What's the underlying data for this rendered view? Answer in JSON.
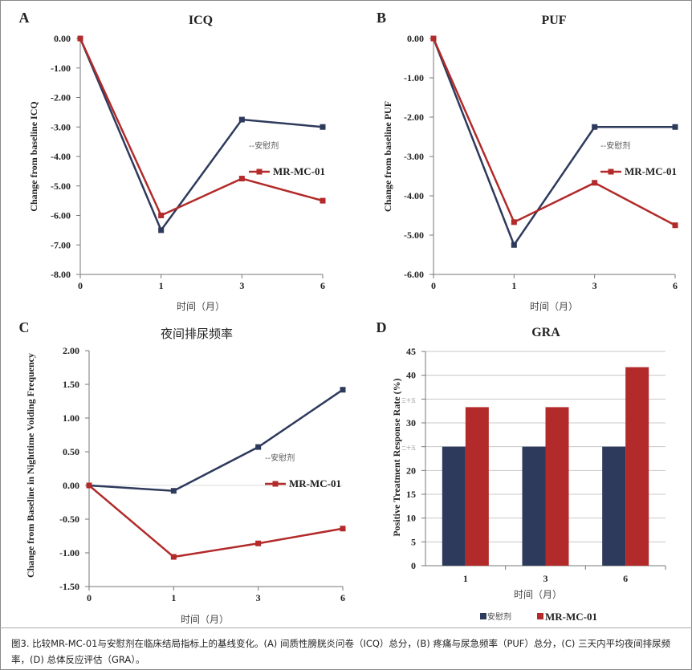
{
  "chart_data": [
    {
      "panel_letter": "A",
      "type": "line",
      "title": "ICQ",
      "xlabel": "时间（月）",
      "ylabel": "Change from baseline ICQ",
      "categories": [
        "0",
        "1",
        "3",
        "6"
      ],
      "ylim": [
        -8,
        0
      ],
      "ytick_step": 1,
      "ytick_labels": [
        "0.00",
        "-1.00",
        "-2.00",
        "-3.00",
        "-4.00",
        "-5.00",
        "-6.00",
        "-7.00",
        "-8.00"
      ],
      "grid": false,
      "legend_placement": "right",
      "series": [
        {
          "name": "--安慰剂",
          "color": "#2e3a5c",
          "values": [
            0,
            -6.5,
            -2.75,
            -3.0
          ]
        },
        {
          "name": "MR-MC-01",
          "color": "#b22a2a",
          "values": [
            0,
            -6.0,
            -4.75,
            -5.5
          ]
        }
      ]
    },
    {
      "panel_letter": "B",
      "type": "line",
      "title": "PUF",
      "xlabel": "时间（月）",
      "ylabel": "Change from baseline PUF",
      "categories": [
        "0",
        "1",
        "3",
        "6"
      ],
      "ylim": [
        -6,
        0
      ],
      "ytick_step": 1,
      "ytick_labels": [
        "0.00",
        "-1.00",
        "-2.00",
        "-3.00",
        "-4.00",
        "-5.00",
        "-6.00"
      ],
      "grid": false,
      "legend_placement": "right",
      "series": [
        {
          "name": "--安慰剂",
          "color": "#2e3a5c",
          "values": [
            0,
            -5.25,
            -2.25,
            -2.25
          ]
        },
        {
          "name": "MR-MC-01",
          "color": "#b22a2a",
          "values": [
            0,
            -4.67,
            -3.67,
            -4.75
          ]
        }
      ]
    },
    {
      "panel_letter": "C",
      "type": "line",
      "title": "夜间排尿频率",
      "xlabel": "时间（月）",
      "ylabel": "Change from Baseline in Nighttime Voiding Frequency",
      "categories": [
        "0",
        "1",
        "3",
        "6"
      ],
      "ylim": [
        -1.5,
        2.0
      ],
      "ytick_step": 0.5,
      "ytick_labels": [
        "2.00",
        "1.50",
        "1.00",
        "0.50",
        "0.00",
        "-0.50",
        "-1.00",
        "-1.50"
      ],
      "grid": false,
      "legend_placement": "right",
      "series": [
        {
          "name": "--安慰剂",
          "color": "#2e3a5c",
          "values": [
            0,
            -0.08,
            0.57,
            1.42
          ]
        },
        {
          "name": "MR-MC-01",
          "color": "#b22a2a",
          "values": [
            0,
            -1.06,
            -0.86,
            -0.64
          ]
        }
      ]
    },
    {
      "panel_letter": "D",
      "type": "bar",
      "title": "GRA",
      "xlabel": "时间（月）",
      "ylabel": "Positive Treatment Response Rate (%)",
      "categories": [
        "1",
        "3",
        "6"
      ],
      "ylim": [
        0,
        45
      ],
      "ytick_step": 5,
      "ytick_labels": [
        "45",
        "40",
        "三十五",
        "30",
        "二十五",
        "20",
        "15",
        "10",
        "5",
        "0"
      ],
      "grid": true,
      "legend_placement": "bottom",
      "series": [
        {
          "name": "安慰剂",
          "color": "#2e3a5c",
          "values": [
            25,
            25,
            25
          ]
        },
        {
          "name": "MR-MC-01",
          "color": "#b22a2a",
          "values": [
            33.3,
            33.3,
            41.7
          ]
        }
      ]
    }
  ],
  "caption": "图3. 比较MR-MC-01与安慰剂在临床结局指标上的基线变化。(A) 间质性膀胱炎问卷（ICQ）总分，(B) 疼痛与尿急频率（PUF）总分，(C) 三天内平均夜间排尿频率，(D) 总体反应评估（GRA）。"
}
